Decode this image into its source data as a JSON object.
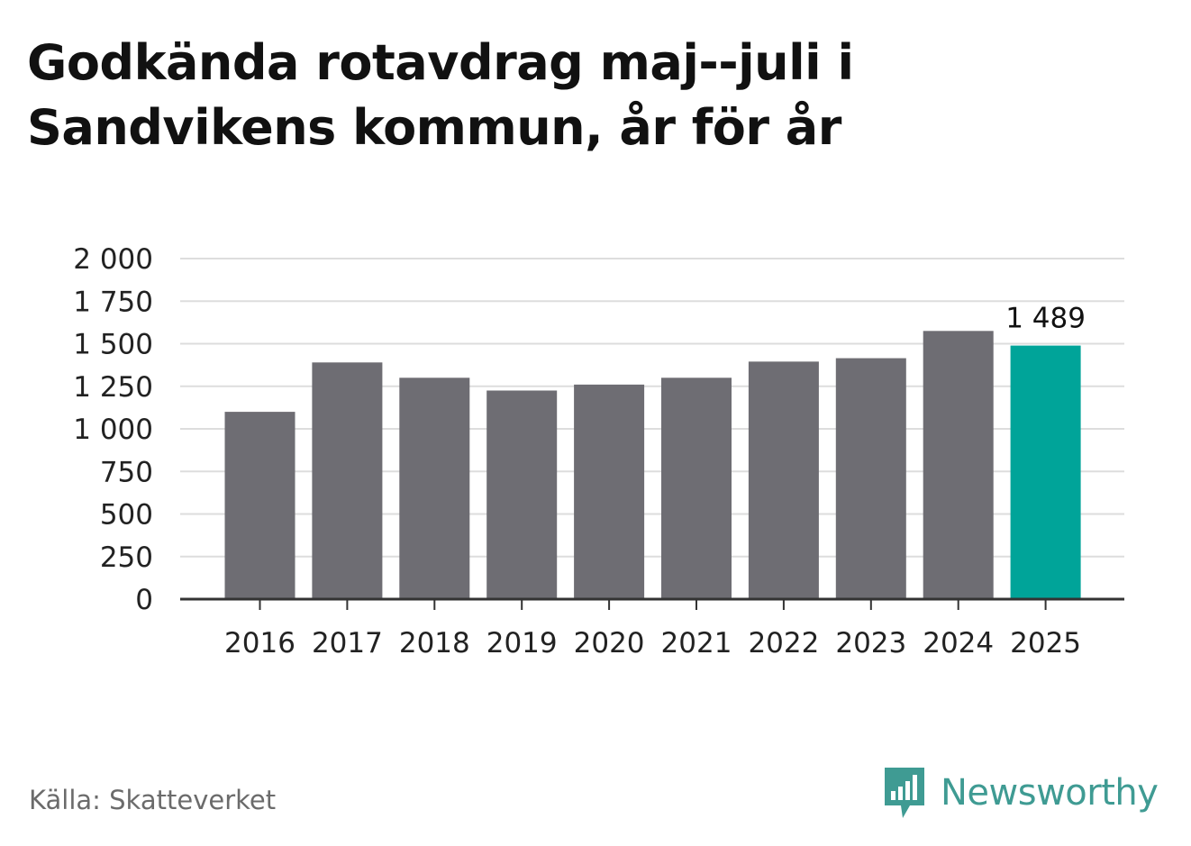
{
  "chart_data": {
    "type": "bar",
    "title": "Godkända rotavdrag maj--juli i Sandvikens kommun, år för år",
    "categories": [
      "2016",
      "2017",
      "2018",
      "2019",
      "2020",
      "2021",
      "2022",
      "2023",
      "2024",
      "2025"
    ],
    "values": [
      1100,
      1390,
      1300,
      1225,
      1260,
      1300,
      1395,
      1415,
      1575,
      1489
    ],
    "ylim": [
      0,
      2000
    ],
    "yticks": [
      0,
      250,
      500,
      750,
      1000,
      1250,
      1500,
      1750,
      2000
    ],
    "ytick_labels": [
      "0",
      "250",
      "500",
      "750",
      "1 000",
      "1 250",
      "1 500",
      "1 750",
      "2 000"
    ],
    "grid": true,
    "highlight_index": 9,
    "highlight_label": "1 489",
    "colors": {
      "bar": "#6e6d73",
      "highlight": "#00a499",
      "grid": "#dddddd",
      "axis": "#333333"
    }
  },
  "footer": {
    "source": "Källa: Skatteverket",
    "brand_name": "Newsworthy",
    "brand_icon": "newsworthy-logo-icon",
    "brand_color": "#3f9b93"
  }
}
